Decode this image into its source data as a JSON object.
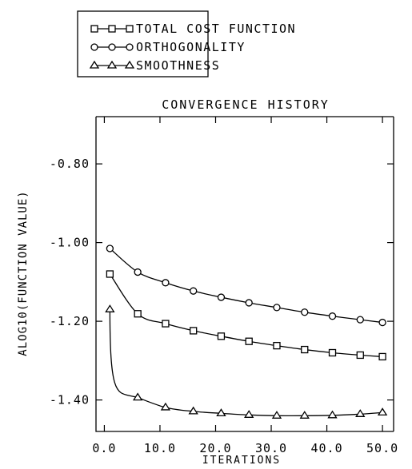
{
  "chart_data": {
    "type": "line",
    "title": "CONVERGENCE HISTORY",
    "xlabel": "ITERATIONS",
    "ylabel": "ALOG10(FUNCTION VALUE)",
    "xlim": [
      -1.5,
      52
    ],
    "ylim": [
      -1.48,
      -0.68
    ],
    "x_ticks": [
      0,
      10,
      20,
      30,
      40,
      50
    ],
    "x_tick_labels": [
      "0.0",
      "10.0",
      "20.0",
      "30.0",
      "40.0",
      "50.0"
    ],
    "y_ticks": [
      -0.8,
      -1.0,
      -1.2,
      -1.4
    ],
    "y_tick_labels": [
      "-0.80",
      "-1.00",
      "-1.20",
      "-1.40"
    ],
    "legend_position": "top-left, above plot",
    "grid": false,
    "series": [
      {
        "name": "TOTAL COST FUNCTION",
        "marker": "square",
        "x": [
          1,
          6,
          11,
          16,
          21,
          26,
          31,
          36,
          41,
          46,
          50
        ],
        "y": [
          -1.08,
          -1.181,
          -1.206,
          -1.224,
          -1.238,
          -1.251,
          -1.262,
          -1.272,
          -1.28,
          -1.286,
          -1.29
        ]
      },
      {
        "name": "ORTHOGONALITY",
        "marker": "circle",
        "x": [
          1,
          6,
          11,
          16,
          21,
          26,
          31,
          36,
          41,
          46,
          50
        ],
        "y": [
          -1.015,
          -1.075,
          -1.102,
          -1.123,
          -1.139,
          -1.153,
          -1.165,
          -1.177,
          -1.187,
          -1.196,
          -1.203
        ]
      },
      {
        "name": "SMOOTHNESS",
        "marker": "triangle",
        "x": [
          1,
          6,
          11,
          16,
          21,
          26,
          31,
          36,
          41,
          46,
          50
        ],
        "y": [
          -1.17,
          -1.394,
          -1.419,
          -1.429,
          -1.434,
          -1.438,
          -1.44,
          -1.44,
          -1.439,
          -1.436,
          -1.432
        ]
      }
    ]
  }
}
